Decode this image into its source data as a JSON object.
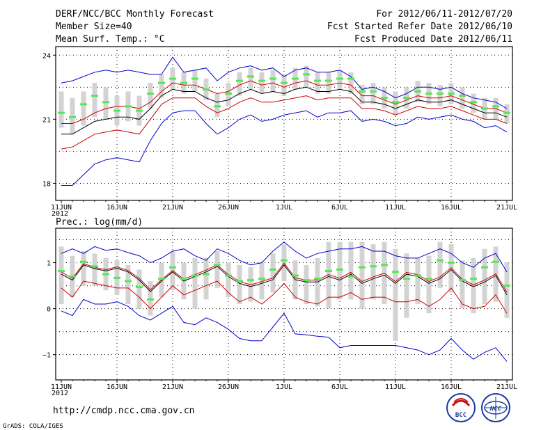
{
  "header": {
    "left": [
      "DERF/NCC/BCC Monthly Forecast",
      "Member Size=40",
      "Mean Surf. Temp.: °C"
    ],
    "right": [
      "For 2012/06/11-2012/07/20",
      "Fcst Started Refer Date 2012/06/10",
      "Fcst Produced Date 2012/06/11"
    ]
  },
  "footer": {
    "url": "http://cmdp.ncc.cma.gov.cn",
    "credit": "GrADS: COLA/IGES",
    "logo1_text": "BCC",
    "logo2_text": "NCC"
  },
  "colors": {
    "box": "#d3d3d3",
    "median": "#55e855",
    "mean": "#000000",
    "inner": "#cc0000",
    "outer": "#0000cc",
    "grid": "#000000"
  },
  "chart_data": [
    {
      "type": "line",
      "title": "Mean Surf. Temp.: °C",
      "year_label": "2012",
      "x_days": 40,
      "xticks": [
        {
          "day": 0,
          "label": "11JUN"
        },
        {
          "day": 5,
          "label": "16JUN"
        },
        {
          "day": 10,
          "label": "21JUN"
        },
        {
          "day": 15,
          "label": "26JUN"
        },
        {
          "day": 20,
          "label": "1JUL"
        },
        {
          "day": 25,
          "label": "6JUL"
        },
        {
          "day": 30,
          "label": "11JUL"
        },
        {
          "day": 35,
          "label": "16JUL"
        },
        {
          "day": 40,
          "label": "21JUL"
        }
      ],
      "ylim": [
        17.2,
        24.4
      ],
      "yticks": [
        {
          "value": 18,
          "label": "18"
        },
        {
          "value": 21,
          "label": "21"
        },
        {
          "value": 24,
          "label": "24"
        }
      ],
      "ygrid": [
        18,
        19.5,
        21,
        22.5,
        24
      ],
      "series": [
        {
          "name": "outer_high",
          "role": "outer",
          "values": [
            22.7,
            22.8,
            23.0,
            23.2,
            23.3,
            23.2,
            23.3,
            23.2,
            23.1,
            23.1,
            23.9,
            23.2,
            23.3,
            23.4,
            22.8,
            23.2,
            23.4,
            23.5,
            23.3,
            23.4,
            23.0,
            23.3,
            23.4,
            23.2,
            23.2,
            23.3,
            23.0,
            22.4,
            22.5,
            22.3,
            22.0,
            22.2,
            22.5,
            22.5,
            22.4,
            22.5,
            22.2,
            22.0,
            21.9,
            21.8,
            21.5
          ]
        },
        {
          "name": "inner_high",
          "role": "inner",
          "values": [
            20.8,
            20.8,
            21.0,
            21.3,
            21.5,
            21.6,
            21.6,
            21.5,
            21.8,
            22.3,
            22.7,
            22.6,
            22.6,
            22.4,
            22.2,
            22.3,
            22.6,
            22.8,
            22.6,
            22.7,
            22.5,
            22.7,
            22.8,
            22.6,
            22.6,
            22.7,
            22.6,
            22.1,
            22.1,
            21.9,
            21.7,
            21.9,
            22.1,
            22.0,
            22.0,
            22.1,
            21.9,
            21.7,
            21.5,
            21.5,
            21.3
          ]
        },
        {
          "name": "mean",
          "role": "mean",
          "values": [
            20.3,
            20.3,
            20.6,
            20.9,
            21.0,
            21.1,
            21.1,
            21.0,
            21.5,
            22.1,
            22.4,
            22.3,
            22.3,
            22.0,
            21.8,
            21.9,
            22.2,
            22.4,
            22.2,
            22.3,
            22.2,
            22.4,
            22.5,
            22.3,
            22.3,
            22.4,
            22.3,
            21.8,
            21.8,
            21.7,
            21.5,
            21.7,
            21.9,
            21.8,
            21.8,
            21.9,
            21.7,
            21.5,
            21.3,
            21.3,
            21.1
          ]
        },
        {
          "name": "inner_low",
          "role": "inner",
          "values": [
            19.6,
            19.7,
            20.0,
            20.3,
            20.4,
            20.5,
            20.4,
            20.3,
            21.0,
            21.7,
            22.0,
            22.0,
            22.0,
            21.6,
            21.3,
            21.5,
            21.8,
            22.0,
            21.8,
            21.8,
            21.9,
            22.0,
            22.1,
            21.9,
            22.0,
            22.0,
            22.0,
            21.5,
            21.5,
            21.4,
            21.2,
            21.4,
            21.6,
            21.5,
            21.5,
            21.6,
            21.4,
            21.2,
            21.0,
            21.0,
            20.8
          ]
        },
        {
          "name": "outer_low",
          "role": "outer",
          "values": [
            17.9,
            17.9,
            18.4,
            18.9,
            19.1,
            19.2,
            19.1,
            19.0,
            20.0,
            20.8,
            21.3,
            21.4,
            21.4,
            20.8,
            20.3,
            20.6,
            21.0,
            21.2,
            20.9,
            21.0,
            21.2,
            21.3,
            21.4,
            21.1,
            21.3,
            21.3,
            21.4,
            20.9,
            21.0,
            20.9,
            20.7,
            20.8,
            21.1,
            21.0,
            21.1,
            21.2,
            21.0,
            20.9,
            20.6,
            20.7,
            20.4
          ]
        },
        {
          "name": "median",
          "role": "median",
          "values": [
            21.3,
            21.1,
            21.7,
            22.1,
            21.8,
            21.4,
            21.6,
            21.4,
            22.2,
            22.7,
            22.9,
            22.7,
            22.9,
            22.4,
            21.6,
            22.2,
            22.8,
            23.0,
            22.8,
            22.9,
            22.7,
            22.9,
            23.1,
            22.8,
            22.8,
            22.9,
            22.9,
            22.3,
            22.3,
            22.0,
            21.8,
            22.0,
            22.3,
            22.2,
            22.2,
            22.2,
            22.1,
            21.8,
            21.5,
            21.6,
            21.3
          ]
        },
        {
          "name": "box_top",
          "role": "box",
          "values": [
            22.3,
            22.0,
            22.3,
            22.7,
            22.5,
            22.1,
            22.3,
            22.1,
            22.7,
            23.1,
            23.4,
            23.2,
            23.3,
            22.9,
            22.2,
            22.7,
            23.2,
            23.4,
            23.2,
            23.3,
            23.1,
            23.4,
            23.5,
            23.2,
            23.2,
            23.3,
            23.2,
            22.6,
            22.7,
            22.5,
            22.3,
            22.5,
            22.8,
            22.7,
            22.6,
            22.7,
            22.5,
            22.2,
            22.0,
            22.0,
            21.7
          ]
        },
        {
          "name": "box_bottom",
          "role": "box",
          "values": [
            20.6,
            20.3,
            20.7,
            21.1,
            21.0,
            20.7,
            20.9,
            20.7,
            21.5,
            22.0,
            22.4,
            22.2,
            22.3,
            21.9,
            21.1,
            21.6,
            22.1,
            22.4,
            22.2,
            22.3,
            22.1,
            22.4,
            22.5,
            22.2,
            22.2,
            22.4,
            22.2,
            21.7,
            21.7,
            21.5,
            21.2,
            21.5,
            21.8,
            21.7,
            21.6,
            21.7,
            21.5,
            21.3,
            21.0,
            21.0,
            20.8
          ]
        }
      ]
    },
    {
      "type": "line",
      "title": "Prec.: log(mm/d)",
      "year_label": "2012",
      "x_days": 40,
      "xticks": [
        {
          "day": 0,
          "label": "11JUN"
        },
        {
          "day": 5,
          "label": "16JUN"
        },
        {
          "day": 10,
          "label": "21JUN"
        },
        {
          "day": 15,
          "label": "26JUN"
        },
        {
          "day": 20,
          "label": "1JUL"
        },
        {
          "day": 25,
          "label": "6JUL"
        },
        {
          "day": 30,
          "label": "11JUL"
        },
        {
          "day": 35,
          "label": "16JUL"
        },
        {
          "day": 40,
          "label": "21JUL"
        }
      ],
      "ylim": [
        -1.55,
        1.75
      ],
      "yticks": [
        {
          "value": -1,
          "label": "−1"
        },
        {
          "value": 0,
          "label": "0"
        },
        {
          "value": 1,
          "label": "1"
        }
      ],
      "ygrid": [
        -1,
        -0.5,
        0,
        0.5,
        1,
        1.5
      ],
      "series": [
        {
          "name": "outer_high",
          "role": "outer",
          "values": [
            1.2,
            1.3,
            1.2,
            1.35,
            1.27,
            1.3,
            1.22,
            1.15,
            1.0,
            1.1,
            1.25,
            1.3,
            1.15,
            1.05,
            1.3,
            1.2,
            1.05,
            0.95,
            1.0,
            1.25,
            1.45,
            1.25,
            1.1,
            1.2,
            1.25,
            1.3,
            1.3,
            1.35,
            1.25,
            1.25,
            1.15,
            1.1,
            1.1,
            1.2,
            1.3,
            1.2,
            1.0,
            0.9,
            1.1,
            1.2,
            0.8
          ]
        },
        {
          "name": "mean",
          "role": "mean",
          "values": [
            0.75,
            0.62,
            0.95,
            0.87,
            0.82,
            0.88,
            0.8,
            0.62,
            0.37,
            0.6,
            0.8,
            0.6,
            0.7,
            0.8,
            0.92,
            0.7,
            0.55,
            0.48,
            0.55,
            0.63,
            0.95,
            0.63,
            0.58,
            0.58,
            0.7,
            0.62,
            0.75,
            0.55,
            0.65,
            0.73,
            0.55,
            0.75,
            0.7,
            0.55,
            0.65,
            0.85,
            0.6,
            0.48,
            0.58,
            0.72,
            0.3
          ]
        },
        {
          "name": "inner_high",
          "role": "inner",
          "values": [
            0.8,
            0.66,
            0.98,
            0.9,
            0.85,
            0.91,
            0.83,
            0.66,
            0.41,
            0.63,
            0.83,
            0.64,
            0.74,
            0.84,
            0.95,
            0.74,
            0.59,
            0.52,
            0.59,
            0.67,
            0.99,
            0.67,
            0.62,
            0.62,
            0.74,
            0.66,
            0.79,
            0.59,
            0.69,
            0.77,
            0.59,
            0.79,
            0.74,
            0.59,
            0.69,
            0.89,
            0.64,
            0.52,
            0.62,
            0.76,
            0.36
          ]
        },
        {
          "name": "inner_low",
          "role": "inner",
          "values": [
            0.45,
            0.25,
            0.6,
            0.55,
            0.5,
            0.45,
            0.45,
            0.25,
            0.0,
            0.25,
            0.5,
            0.3,
            0.4,
            0.5,
            0.6,
            0.35,
            0.15,
            0.25,
            0.1,
            0.3,
            0.55,
            0.25,
            0.15,
            0.1,
            0.25,
            0.25,
            0.35,
            0.2,
            0.25,
            0.25,
            0.15,
            0.15,
            0.2,
            0.05,
            0.2,
            0.45,
            0.1,
            0.0,
            0.05,
            0.3,
            -0.1
          ]
        },
        {
          "name": "outer_low",
          "role": "outer",
          "values": [
            -0.05,
            -0.15,
            0.2,
            0.1,
            0.1,
            0.15,
            0.05,
            -0.15,
            -0.25,
            -0.1,
            0.05,
            -0.3,
            -0.35,
            -0.2,
            -0.3,
            -0.45,
            -0.65,
            -0.7,
            -0.7,
            -0.4,
            -0.1,
            -0.55,
            -0.57,
            -0.6,
            -0.62,
            -0.85,
            -0.8,
            -0.8,
            -0.8,
            -0.8,
            -0.8,
            -0.85,
            -0.9,
            -1.0,
            -0.9,
            -0.65,
            -0.9,
            -1.1,
            -0.95,
            -0.85,
            -1.15
          ]
        },
        {
          "name": "median",
          "role": "median",
          "values": [
            0.82,
            0.7,
            1.02,
            0.92,
            0.75,
            0.67,
            0.6,
            0.47,
            0.2,
            0.65,
            0.9,
            0.65,
            0.72,
            0.75,
            0.95,
            0.72,
            0.6,
            0.62,
            0.65,
            0.85,
            1.05,
            0.72,
            0.62,
            0.65,
            0.82,
            0.85,
            0.7,
            0.9,
            0.92,
            0.95,
            0.8,
            0.65,
            0.72,
            0.65,
            1.05,
            1.0,
            0.62,
            0.65,
            0.9,
            1.02,
            0.5
          ]
        },
        {
          "name": "box_top",
          "role": "box",
          "values": [
            1.35,
            1.15,
            1.25,
            1.2,
            1.1,
            1.05,
            0.95,
            0.85,
            0.6,
            1.0,
            1.25,
            1.0,
            1.1,
            1.1,
            1.25,
            1.0,
            0.95,
            0.9,
            1.0,
            1.2,
            1.4,
            1.05,
            0.95,
            1.1,
            1.45,
            1.45,
            1.45,
            1.45,
            1.4,
            1.45,
            1.3,
            1.2,
            1.1,
            1.15,
            1.45,
            1.4,
            1.05,
            1.1,
            1.3,
            1.35,
            1.0
          ]
        },
        {
          "name": "box_bottom",
          "role": "box",
          "values": [
            0.1,
            0.25,
            0.5,
            0.5,
            0.4,
            0.3,
            0.1,
            0.0,
            -0.15,
            0.25,
            0.4,
            0.2,
            0.0,
            0.2,
            0.45,
            0.25,
            0.1,
            0.15,
            0.2,
            0.35,
            0.6,
            0.2,
            0.1,
            0.05,
            0.0,
            0.2,
            0.2,
            0.0,
            0.2,
            0.1,
            -0.7,
            -0.2,
            0.1,
            -0.1,
            0.45,
            0.35,
            0.0,
            -0.1,
            0.1,
            0.15,
            -0.2
          ]
        }
      ]
    }
  ]
}
